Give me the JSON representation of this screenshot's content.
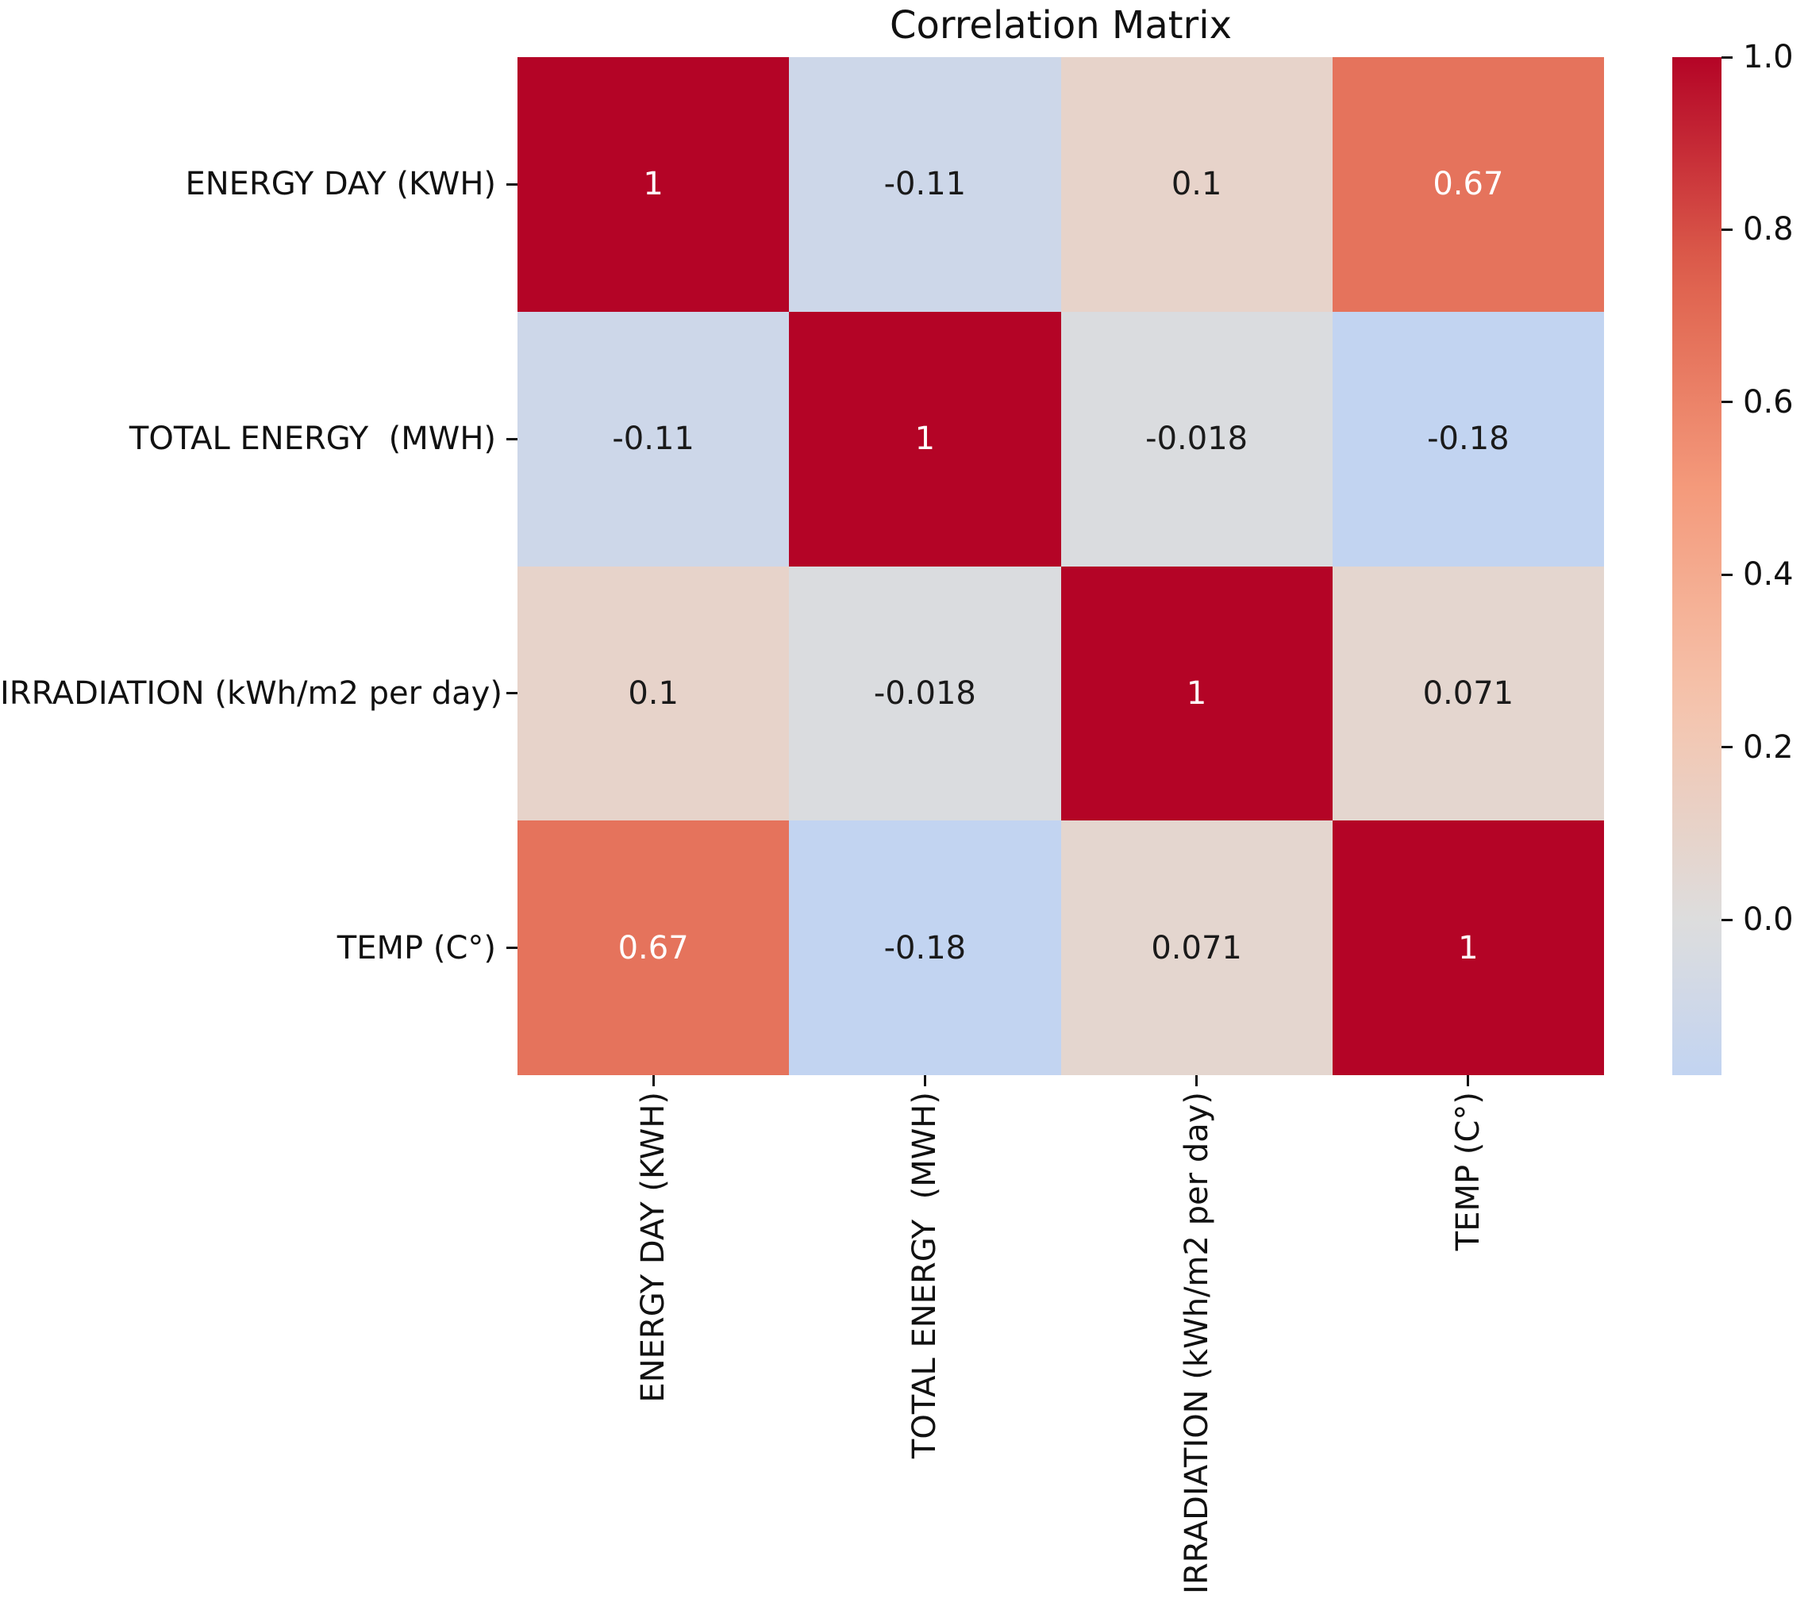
{
  "chart_data": {
    "type": "heatmap",
    "title": "Correlation Matrix",
    "categories": [
      "ENERGY DAY (KWH)",
      "TOTAL ENERGY  (MWH)",
      "IRRADIATION (kWh/m2 per day)",
      "TEMP (C°)"
    ],
    "matrix": [
      [
        1,
        -0.11,
        0.1,
        0.67
      ],
      [
        -0.11,
        1,
        -0.018,
        -0.18
      ],
      [
        0.1,
        -0.018,
        1,
        0.071
      ],
      [
        0.67,
        -0.18,
        0.071,
        1
      ]
    ],
    "cell_labels": [
      [
        "1",
        "-0.11",
        "0.1",
        "0.67"
      ],
      [
        "-0.11",
        "1",
        "-0.018",
        "-0.18"
      ],
      [
        "0.1",
        "-0.018",
        "1",
        "0.071"
      ],
      [
        "0.67",
        "-0.18",
        "0.071",
        "1"
      ]
    ],
    "colormap": "coolwarm",
    "center": 0,
    "vmin": -0.18,
    "vmax": 1.0,
    "colorbar": {
      "position": "right",
      "tick_labels": [
        "1.0",
        "0.8",
        "0.6",
        "0.4",
        "0.2",
        "0.0"
      ],
      "tick_values": [
        1.0,
        0.8,
        0.6,
        0.4,
        0.2,
        0.0
      ]
    },
    "colors": {
      "strongest_positive": "#b40426",
      "mid_neutral": "#dddddd",
      "lowest_shown": "#c2d4f1",
      "annotation_dark": "#1a1a1a",
      "annotation_light": "#ffffff",
      "axis_text": "#111111"
    },
    "grid": false,
    "annotated": true
  }
}
